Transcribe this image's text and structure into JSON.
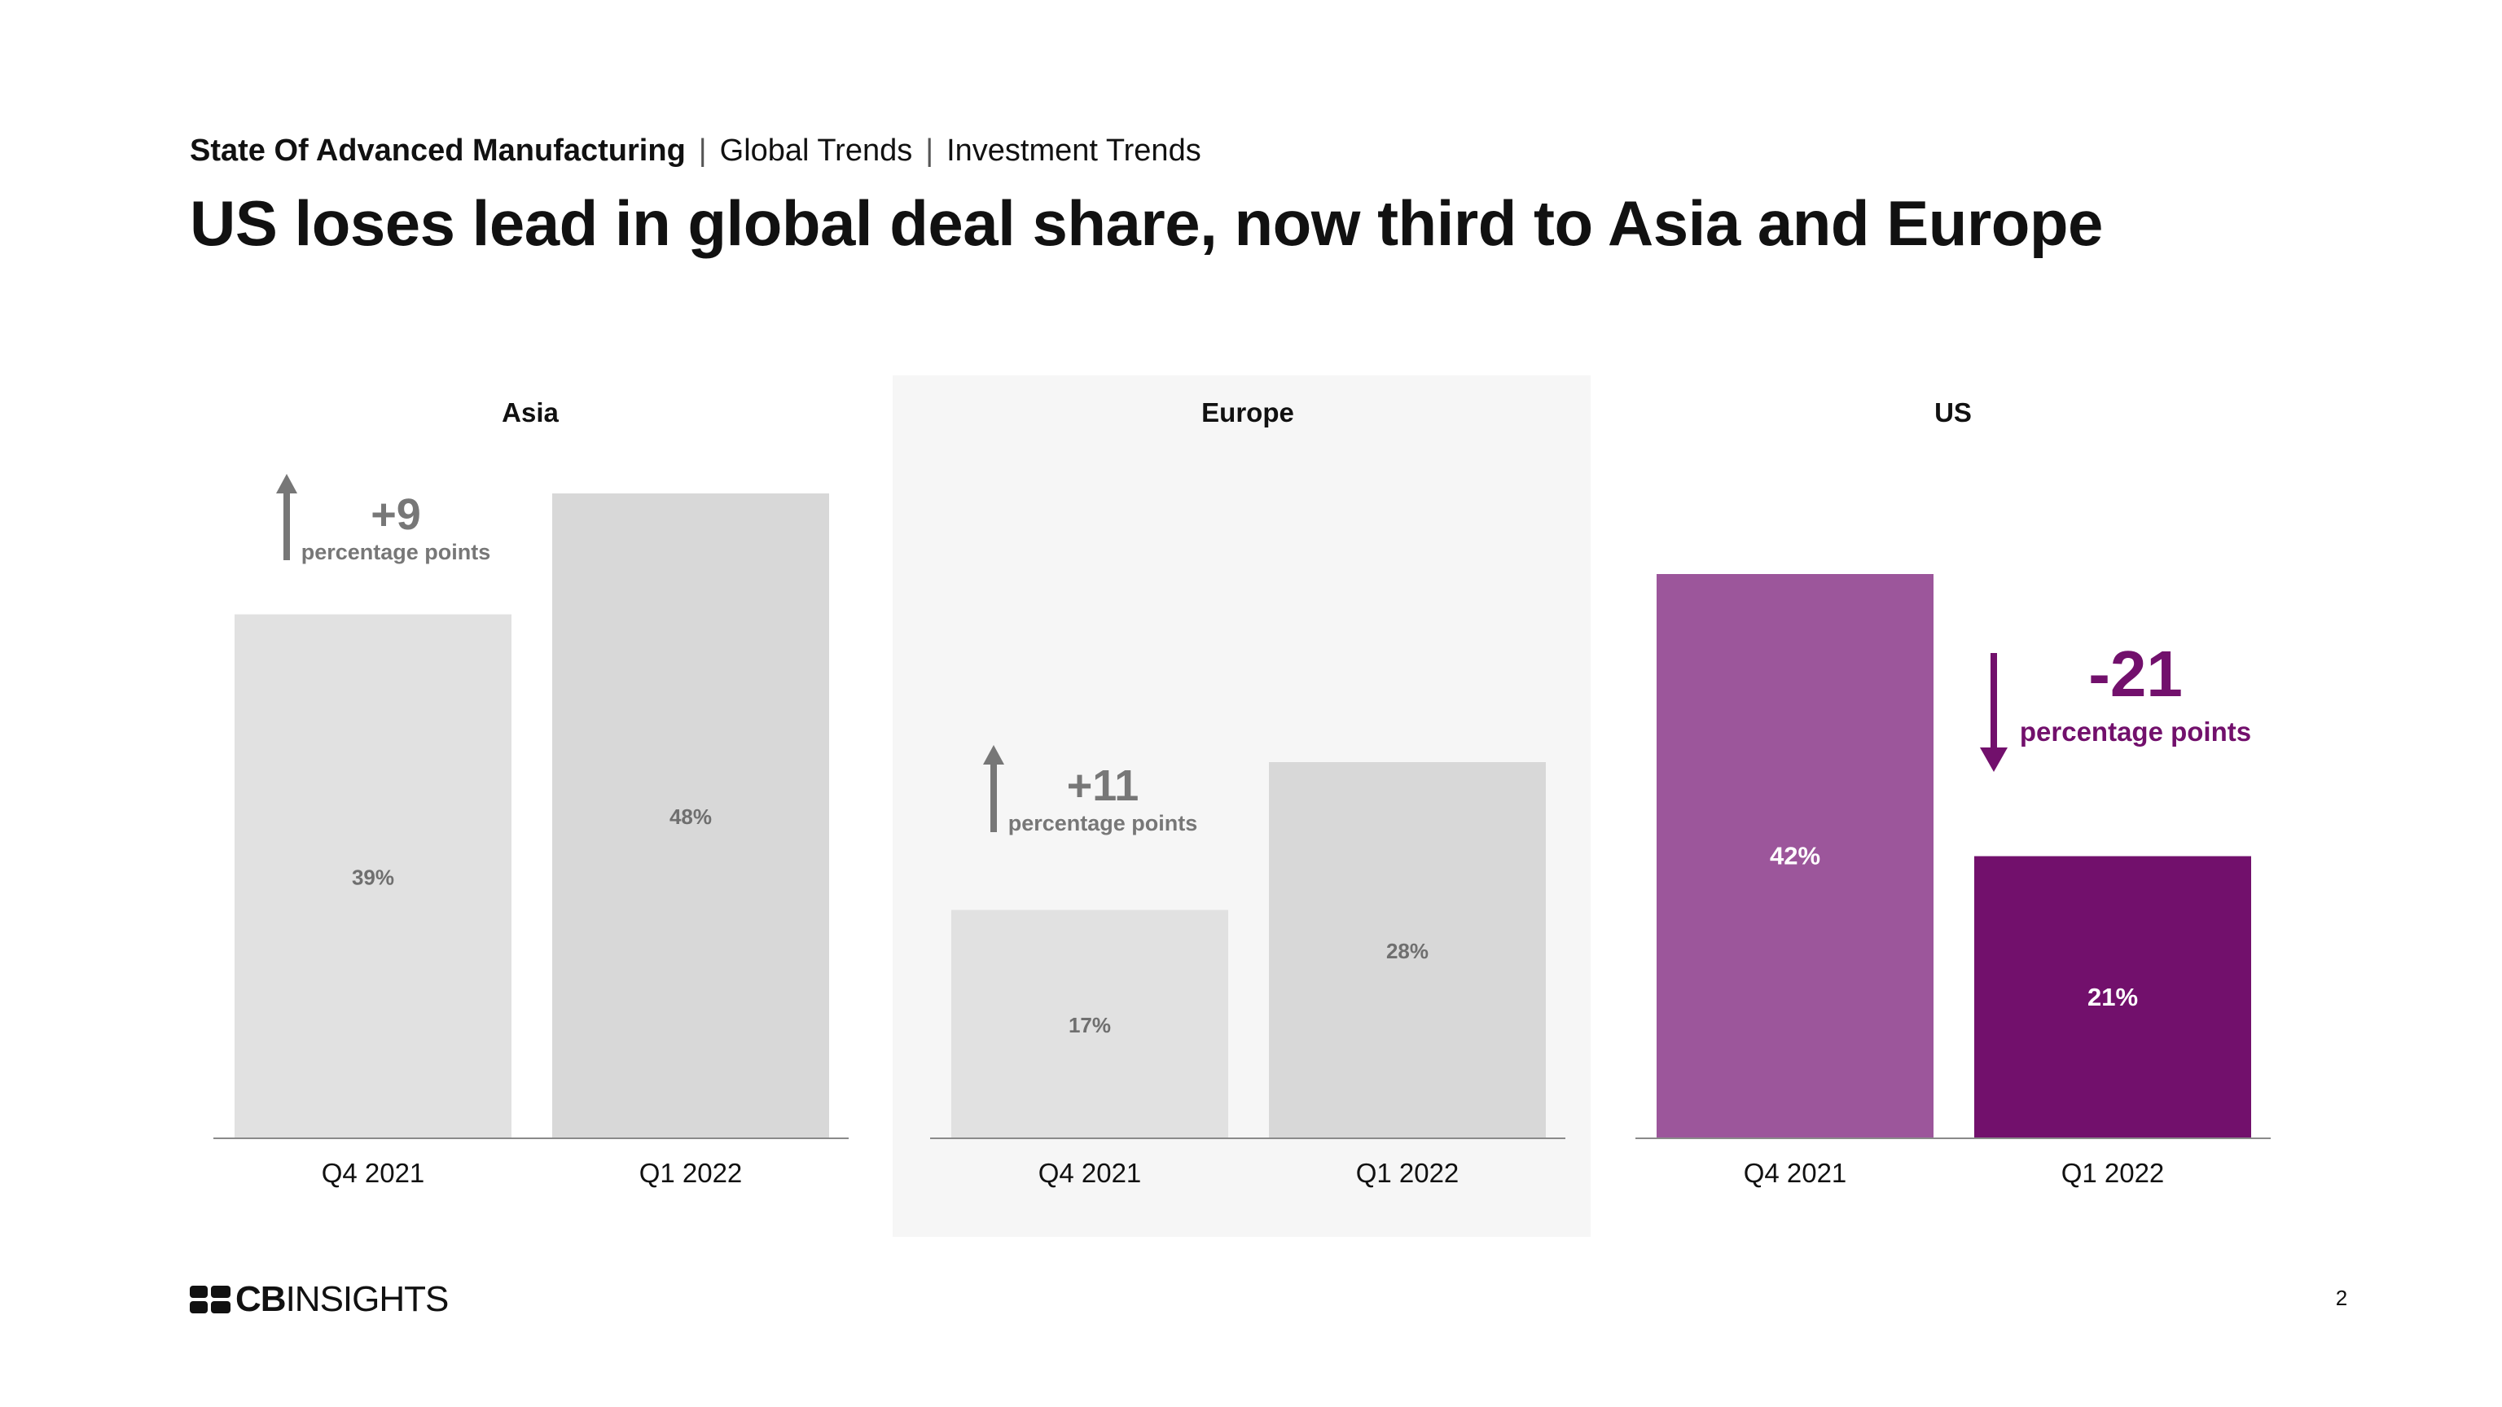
{
  "header": {
    "breadcrumb": [
      "State Of Advanced Manufacturing",
      "Global Trends",
      "Investment Trends"
    ],
    "separator": "|",
    "title": "US loses lead in global deal share, now third to Asia and Europe"
  },
  "footer": {
    "logo_bold": "CB",
    "logo_light": "INSIGHTS",
    "page_number": "2"
  },
  "colors": {
    "bar_light": "#e1e1e1",
    "bar_mid": "#d8d8d8",
    "annotation_gray": "#777777",
    "us_q4": "#9c569b",
    "us_q1": "#72106c",
    "panel_highlight": "#f6f6f6"
  },
  "chart_data": [
    {
      "type": "bar",
      "title": "Asia",
      "categories": [
        "Q4 2021",
        "Q1 2022"
      ],
      "values": [
        39,
        48
      ],
      "value_labels": [
        "39%",
        "48%"
      ],
      "unit": "%",
      "ylim": [
        0,
        50
      ],
      "change": {
        "value": "+9",
        "label": "percentage points",
        "direction": "up"
      }
    },
    {
      "type": "bar",
      "title": "Europe",
      "categories": [
        "Q4 2021",
        "Q1 2022"
      ],
      "values": [
        17,
        28
      ],
      "value_labels": [
        "17%",
        "28%"
      ],
      "unit": "%",
      "ylim": [
        0,
        50
      ],
      "highlighted": true,
      "change": {
        "value": "+11",
        "label": "percentage points",
        "direction": "up"
      }
    },
    {
      "type": "bar",
      "title": "US",
      "categories": [
        "Q4 2021",
        "Q1 2022"
      ],
      "values": [
        42,
        21
      ],
      "value_labels": [
        "42%",
        "21%"
      ],
      "unit": "%",
      "ylim": [
        0,
        50
      ],
      "change": {
        "value": "-21",
        "label": "percentage points",
        "direction": "down"
      }
    }
  ]
}
